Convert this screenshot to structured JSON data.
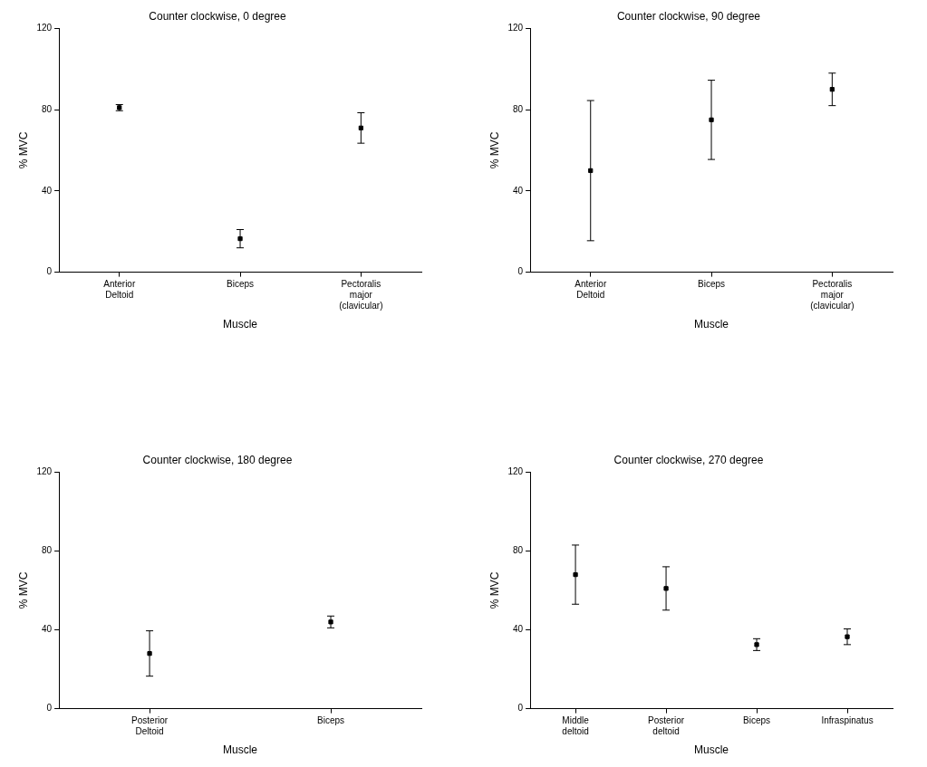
{
  "chart_data": [
    {
      "type": "scatter",
      "title": "Counter clockwise, 0 degree",
      "x_label": "Muscle",
      "y_label": "% MVC",
      "categories": [
        "Anterior Deltoid",
        "Biceps",
        "Pectoralis major (clavicular)"
      ],
      "values": [
        81,
        16.5,
        71
      ],
      "errors": [
        1.5,
        4.5,
        7.5
      ],
      "ylim": [
        0,
        120
      ],
      "yticks": [
        0,
        40,
        80,
        120
      ],
      "grid": false,
      "color": "#000000",
      "marker": "square"
    },
    {
      "type": "scatter",
      "title": "Counter clockwise, 90 degree",
      "x_label": "Muscle",
      "y_label": "% MVC",
      "categories": [
        "Anterior Deltoid",
        "Biceps",
        "Pectoralis major (clavicular)"
      ],
      "values": [
        50,
        75,
        90
      ],
      "errors": [
        34.5,
        19.5,
        8
      ],
      "ylim": [
        0,
        120
      ],
      "yticks": [
        0,
        40,
        80,
        120
      ],
      "grid": false,
      "color": "#000000",
      "marker": "square"
    },
    {
      "type": "scatter",
      "title": "Counter clockwise, 180 degree",
      "x_label": "Muscle",
      "y_label": "% MVC",
      "categories": [
        "Posterior Deltoid",
        "Biceps"
      ],
      "values": [
        28,
        44
      ],
      "errors": [
        11.5,
        3
      ],
      "ylim": [
        0,
        120
      ],
      "yticks": [
        0,
        40,
        80,
        120
      ],
      "grid": false,
      "color": "#000000",
      "marker": "square"
    },
    {
      "type": "scatter",
      "title": "Counter clockwise, 270 degree",
      "x_label": "Muscle",
      "y_label": "% MVC",
      "categories": [
        "Middle deltoid",
        "Posterior deltoid",
        "Biceps",
        "Infraspinatus"
      ],
      "values": [
        68,
        61,
        32.5,
        36.5
      ],
      "errors": [
        15,
        11,
        3,
        4
      ],
      "ylim": [
        0,
        120
      ],
      "yticks": [
        0,
        40,
        80,
        120
      ],
      "grid": false,
      "color": "#000000",
      "marker": "square"
    }
  ]
}
